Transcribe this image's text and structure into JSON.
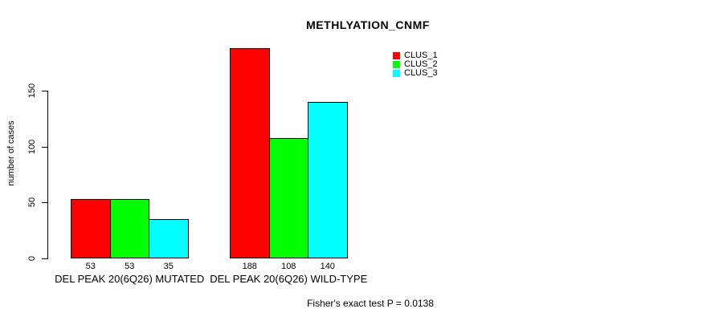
{
  "chart_data": {
    "type": "bar",
    "title": "METHLYATION_CNMF",
    "ylabel": "number of cases",
    "xlabel": "",
    "ylim": [
      0,
      150
    ],
    "yticks": [
      0,
      50,
      100,
      150
    ],
    "grid": false,
    "legend_position": "top-right",
    "categories": [
      "DEL PEAK 20(6Q26) MUTATED",
      "DEL PEAK 20(6Q26) WILD-TYPE"
    ],
    "series": [
      {
        "name": "CLUS_1",
        "color": "#ff0000",
        "values": [
          53,
          188
        ]
      },
      {
        "name": "CLUS_2",
        "color": "#00ff00",
        "values": [
          53,
          108
        ]
      },
      {
        "name": "CLUS_3",
        "color": "#00ffff",
        "values": [
          35,
          140
        ]
      }
    ],
    "bar_value_labels": [
      [
        53,
        53,
        35
      ],
      [
        188,
        108,
        140
      ]
    ],
    "annotation": "Fisher's exact test P = 0.0138"
  },
  "colors": {
    "background": "#ffffff",
    "axis": "#000000",
    "text": "#000000"
  }
}
